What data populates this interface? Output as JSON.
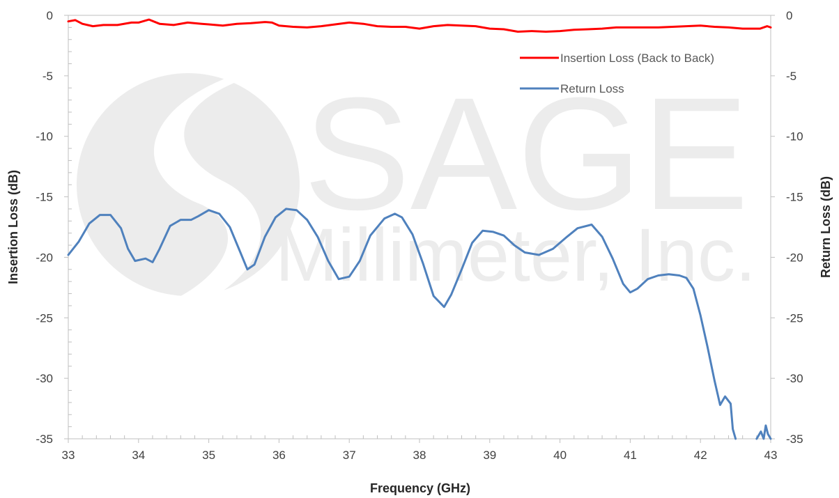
{
  "chart_data": {
    "type": "line",
    "title": "",
    "xlabel": "Frequency (GHz)",
    "ylabel": "Insertion Loss (dB)",
    "y2label": "Return Loss (dB)",
    "xlim": [
      33,
      43
    ],
    "ylim": [
      -35,
      0
    ],
    "y2lim": [
      -35,
      0
    ],
    "x_ticks": [
      "33",
      "34",
      "35",
      "36",
      "37",
      "38",
      "39",
      "40",
      "41",
      "42",
      "43"
    ],
    "y_ticks": [
      "0",
      "-5",
      "-10",
      "-15",
      "-20",
      "-25",
      "-30",
      "-35"
    ],
    "y2_ticks": [
      "0",
      "-5",
      "-10",
      "-15",
      "-20",
      "-25",
      "-30",
      "-35"
    ],
    "grid": false,
    "legend": "top-right",
    "watermark": {
      "line1": "SAGE",
      "line2": "Millimeter, Inc."
    },
    "series": [
      {
        "name": "Insertion Loss (Back to Back)",
        "color": "#ff0000",
        "axis": "left",
        "x": [
          33.0,
          33.1,
          33.2,
          33.35,
          33.5,
          33.7,
          33.9,
          34.0,
          34.15,
          34.3,
          34.5,
          34.7,
          34.9,
          35.0,
          35.2,
          35.4,
          35.6,
          35.8,
          35.9,
          36.0,
          36.2,
          36.4,
          36.6,
          36.8,
          37.0,
          37.2,
          37.4,
          37.6,
          37.8,
          38.0,
          38.2,
          38.4,
          38.6,
          38.8,
          39.0,
          39.2,
          39.4,
          39.6,
          39.8,
          40.0,
          40.2,
          40.4,
          40.6,
          40.8,
          41.0,
          41.2,
          41.4,
          41.6,
          41.8,
          42.0,
          42.2,
          42.4,
          42.6,
          42.75,
          42.85,
          42.95,
          43.0
        ],
        "values": [
          -0.5,
          -0.4,
          -0.7,
          -0.9,
          -0.8,
          -0.8,
          -0.6,
          -0.6,
          -0.35,
          -0.7,
          -0.8,
          -0.6,
          -0.7,
          -0.75,
          -0.85,
          -0.7,
          -0.65,
          -0.55,
          -0.6,
          -0.85,
          -0.95,
          -1.0,
          -0.9,
          -0.75,
          -0.6,
          -0.7,
          -0.9,
          -0.95,
          -0.95,
          -1.1,
          -0.9,
          -0.8,
          -0.85,
          -0.9,
          -1.1,
          -1.15,
          -1.35,
          -1.3,
          -1.35,
          -1.3,
          -1.2,
          -1.15,
          -1.1,
          -1.0,
          -1.0,
          -1.0,
          -1.0,
          -0.95,
          -0.9,
          -0.85,
          -0.95,
          -1.0,
          -1.1,
          -1.1,
          -1.1,
          -0.9,
          -1.0
        ]
      },
      {
        "name": "Return Loss",
        "color": "#4f81bd",
        "axis": "right",
        "segments": [
          {
            "x": [
              33.0,
              33.15,
              33.3,
              33.45,
              33.6,
              33.75,
              33.85,
              33.95,
              34.1,
              34.2,
              34.3,
              34.45,
              34.6,
              34.75,
              34.85,
              35.0,
              35.15,
              35.3,
              35.45,
              35.55,
              35.65,
              35.8,
              35.95,
              36.1,
              36.25,
              36.4,
              36.55,
              36.7,
              36.85,
              37.0,
              37.15,
              37.3,
              37.5,
              37.65,
              37.75,
              37.9,
              38.05,
              38.2,
              38.35,
              38.45,
              38.6,
              38.75,
              38.9,
              39.05,
              39.2,
              39.35,
              39.5,
              39.7,
              39.9,
              40.1,
              40.25,
              40.45,
              40.6,
              40.75,
              40.9,
              41.0,
              41.1,
              41.25,
              41.4,
              41.55,
              41.7,
              41.8,
              41.9,
              42.0,
              42.1,
              42.2,
              42.28,
              42.35,
              42.43,
              42.46,
              42.5
            ],
            "values": [
              -19.8,
              -18.7,
              -17.2,
              -16.5,
              -16.5,
              -17.6,
              -19.3,
              -20.3,
              -20.1,
              -20.4,
              -19.3,
              -17.4,
              -16.9,
              -16.9,
              -16.6,
              -16.1,
              -16.4,
              -17.5,
              -19.6,
              -21.0,
              -20.6,
              -18.3,
              -16.7,
              -16.0,
              -16.1,
              -16.9,
              -18.3,
              -20.3,
              -21.8,
              -21.6,
              -20.3,
              -18.2,
              -16.8,
              -16.4,
              -16.7,
              -18.1,
              -20.5,
              -23.2,
              -24.1,
              -23.1,
              -21.0,
              -18.8,
              -17.8,
              -17.9,
              -18.2,
              -19.0,
              -19.6,
              -19.8,
              -19.3,
              -18.3,
              -17.6,
              -17.3,
              -18.3,
              -20.1,
              -22.2,
              -22.9,
              -22.6,
              -21.8,
              -21.5,
              -21.4,
              -21.5,
              -21.7,
              -22.6,
              -24.8,
              -27.4,
              -30.2,
              -32.2,
              -31.5,
              -32.1,
              -34.2,
              -35.0
            ]
          },
          {
            "x": [
              42.8,
              42.86,
              42.9,
              42.93,
              42.96,
              43.0
            ],
            "values": [
              -35.0,
              -34.4,
              -35.0,
              -33.9,
              -34.6,
              -35.0
            ]
          }
        ]
      }
    ]
  }
}
